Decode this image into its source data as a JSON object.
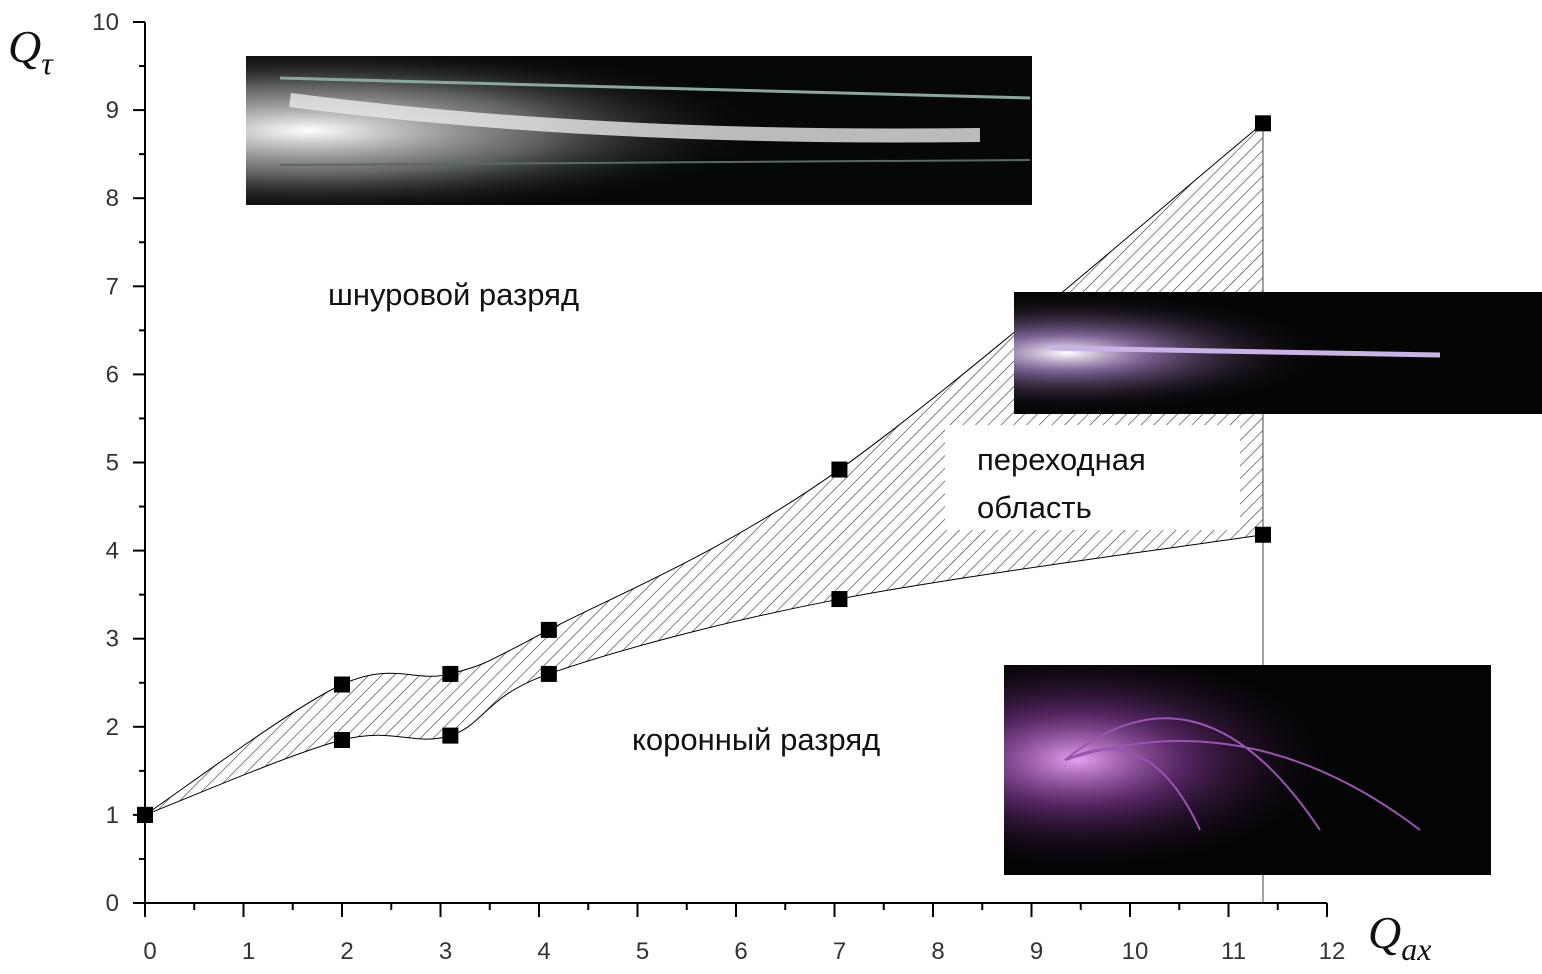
{
  "chart_data": {
    "type": "scatter",
    "x_label": {
      "main": "Q",
      "sub": "ax"
    },
    "y_label": {
      "main": "Q",
      "sub": "τ"
    },
    "xlim": [
      0,
      12
    ],
    "ylim": [
      0,
      10
    ],
    "xticks": [
      0,
      1,
      2,
      3,
      4,
      5,
      6,
      7,
      8,
      9,
      10,
      11,
      12
    ],
    "yticks": [
      0,
      1,
      2,
      3,
      4,
      5,
      6,
      7,
      8,
      9,
      10
    ],
    "series": [
      {
        "color": "#000000",
        "x": [
          0,
          2,
          3.1,
          4.1,
          7.05,
          11.35
        ],
        "values": [
          1,
          2.48,
          2.6,
          3.1,
          4.92,
          8.85
        ]
      },
      {
        "color": "#000000",
        "x": [
          0,
          2,
          3.1,
          4.1,
          7.05,
          11.35
        ],
        "values": [
          1,
          1.85,
          1.9,
          2.6,
          3.45,
          4.18
        ]
      }
    ],
    "annotations": [
      "шнуровой разряд",
      "переходная",
      "область",
      "коронный разряд"
    ]
  }
}
